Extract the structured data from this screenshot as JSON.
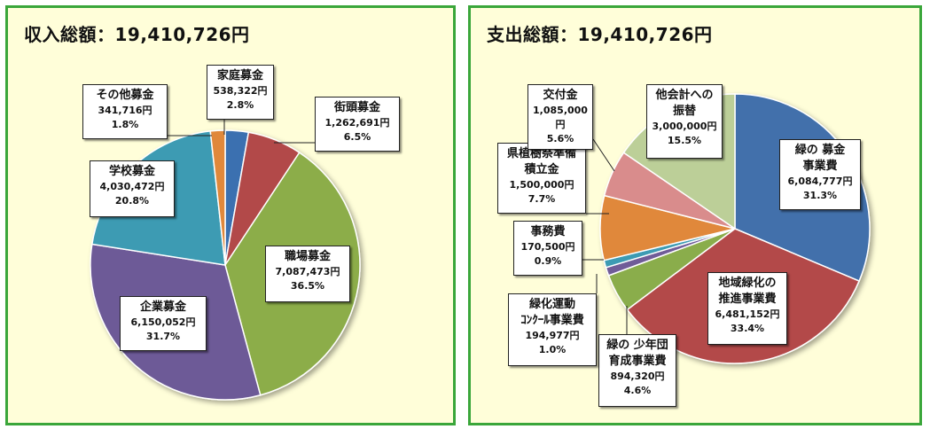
{
  "chart_data": [
    {
      "type": "pie",
      "title": "収入総額：19,410,726円",
      "labels": [
        "家庭募金",
        "街頭募金",
        "職場募金",
        "企業募金",
        "学校募金",
        "その他募金"
      ],
      "values": [
        538322,
        1262691,
        7087473,
        6150052,
        4030472,
        341716
      ],
      "value_labels": [
        "538,322円",
        "1,262,691円",
        "7,087,473円",
        "6,150,052円",
        "4,030,472円",
        "341,716円"
      ],
      "percents": [
        "2.8%",
        "6.5%",
        "36.5%",
        "31.7%",
        "20.8%",
        "1.8%"
      ],
      "colors": [
        "#3b6fb0",
        "#b24a48",
        "#8cad4a",
        "#6d5a97",
        "#3d9bb3",
        "#e0883a"
      ],
      "legend": "none"
    },
    {
      "type": "pie",
      "title": "支出総額：19,410,726円",
      "labels": [
        "緑の 募金\n事業費",
        "地域緑化の\n推進事業費",
        "緑の 少年団\n育成事業費",
        "緑化運動\nｺﾝｸｰﾙ事業費",
        "事務費",
        "県植樹祭準備\n積立金",
        "交付金",
        "他会計への\n振替"
      ],
      "values": [
        6084777,
        6481152,
        894320,
        194977,
        170500,
        1500000,
        1085000,
        3000000
      ],
      "value_labels": [
        "6,084,777円",
        "6,481,152円",
        "894,320円",
        "194,977円",
        "170,500円",
        "1,500,000円",
        "1,085,000円",
        "3,000,000円"
      ],
      "percents": [
        "31.3%",
        "33.4%",
        "4.6%",
        "1.0%",
        "0.9%",
        "7.7%",
        "5.6%",
        "15.5%"
      ],
      "colors": [
        "#4270ab",
        "#b34848",
        "#8aad4c",
        "#6f5b98",
        "#3d9bb3",
        "#e0883a",
        "#d98c8c",
        "#bccf98"
      ],
      "legend": "none"
    }
  ]
}
